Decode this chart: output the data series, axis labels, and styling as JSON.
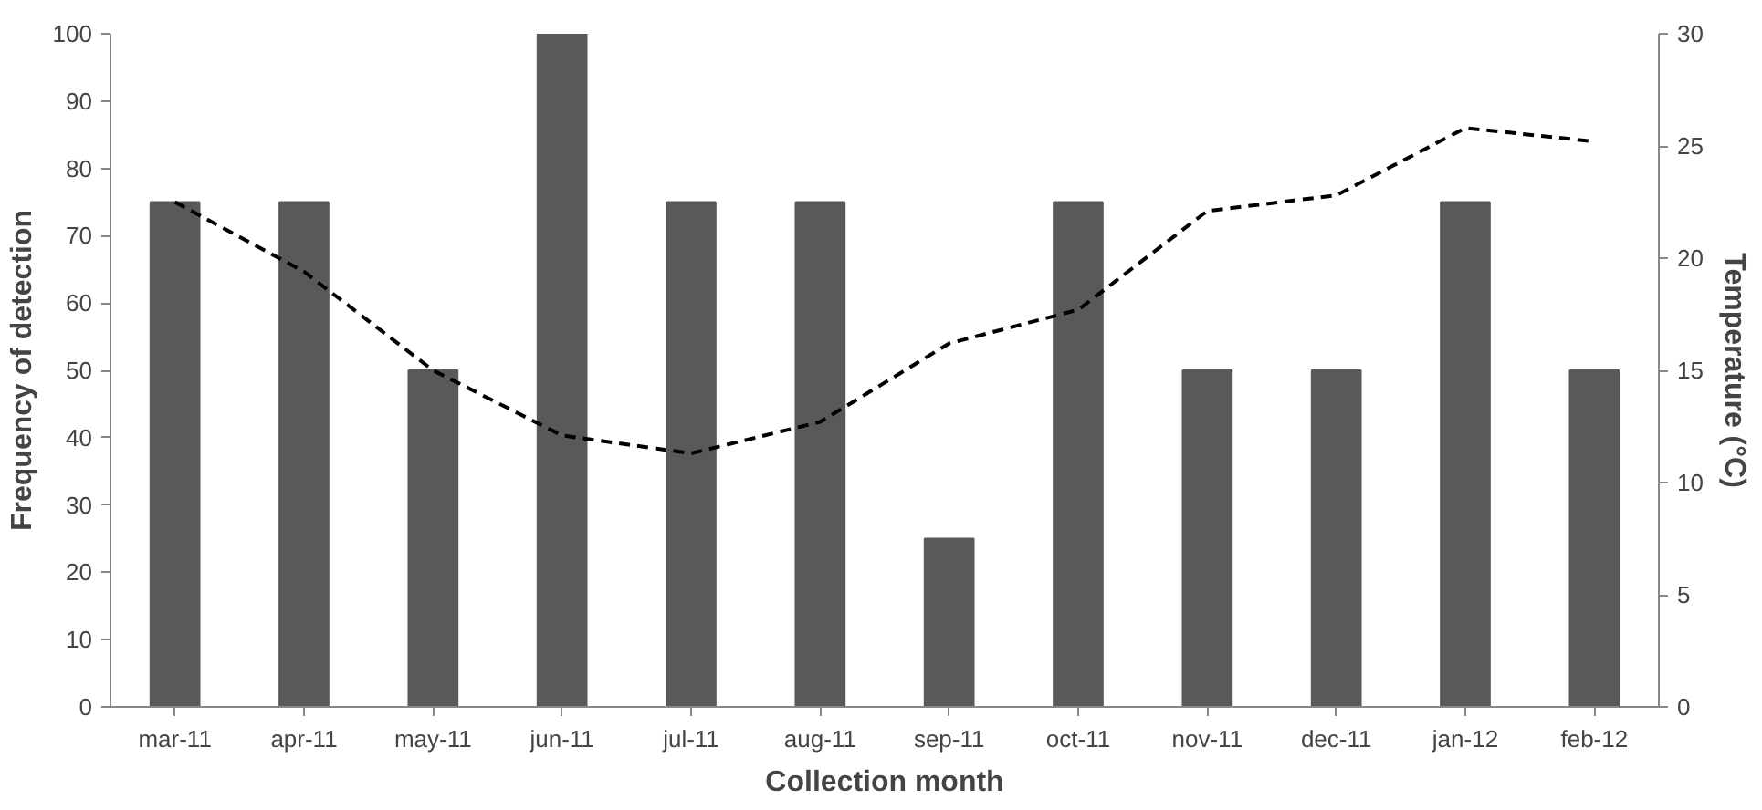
{
  "chart_data": {
    "type": "bar",
    "xlabel": "Collection month",
    "ylabel": "Frequency of detection",
    "y2label": "Temperature (°C)",
    "categories": [
      "mar-11",
      "apr-11",
      "may-11",
      "jun-11",
      "jul-11",
      "aug-11",
      "sep-11",
      "oct-11",
      "nov-11",
      "dec-11",
      "jan-12",
      "feb-12"
    ],
    "series": [
      {
        "color": "#595959",
        "values": [
          75,
          75,
          50,
          100,
          75,
          75,
          25,
          75,
          50,
          50,
          75,
          50
        ]
      },
      {
        "type": "line",
        "axis": "y2",
        "color": "#000000",
        "line_style": "dashed",
        "marker": "none",
        "values": [
          22.5,
          19.4,
          15.0,
          12.1,
          11.3,
          12.7,
          16.2,
          17.7,
          22.1,
          22.8,
          25.8,
          25.2
        ]
      }
    ],
    "ylim": [
      0,
      100
    ],
    "yticks": [
      0,
      10,
      20,
      30,
      40,
      50,
      60,
      70,
      80,
      90,
      100
    ],
    "y2lim": [
      0,
      30
    ],
    "y2ticks": [
      0,
      5,
      10,
      15,
      20,
      25,
      30
    ],
    "grid": false
  }
}
